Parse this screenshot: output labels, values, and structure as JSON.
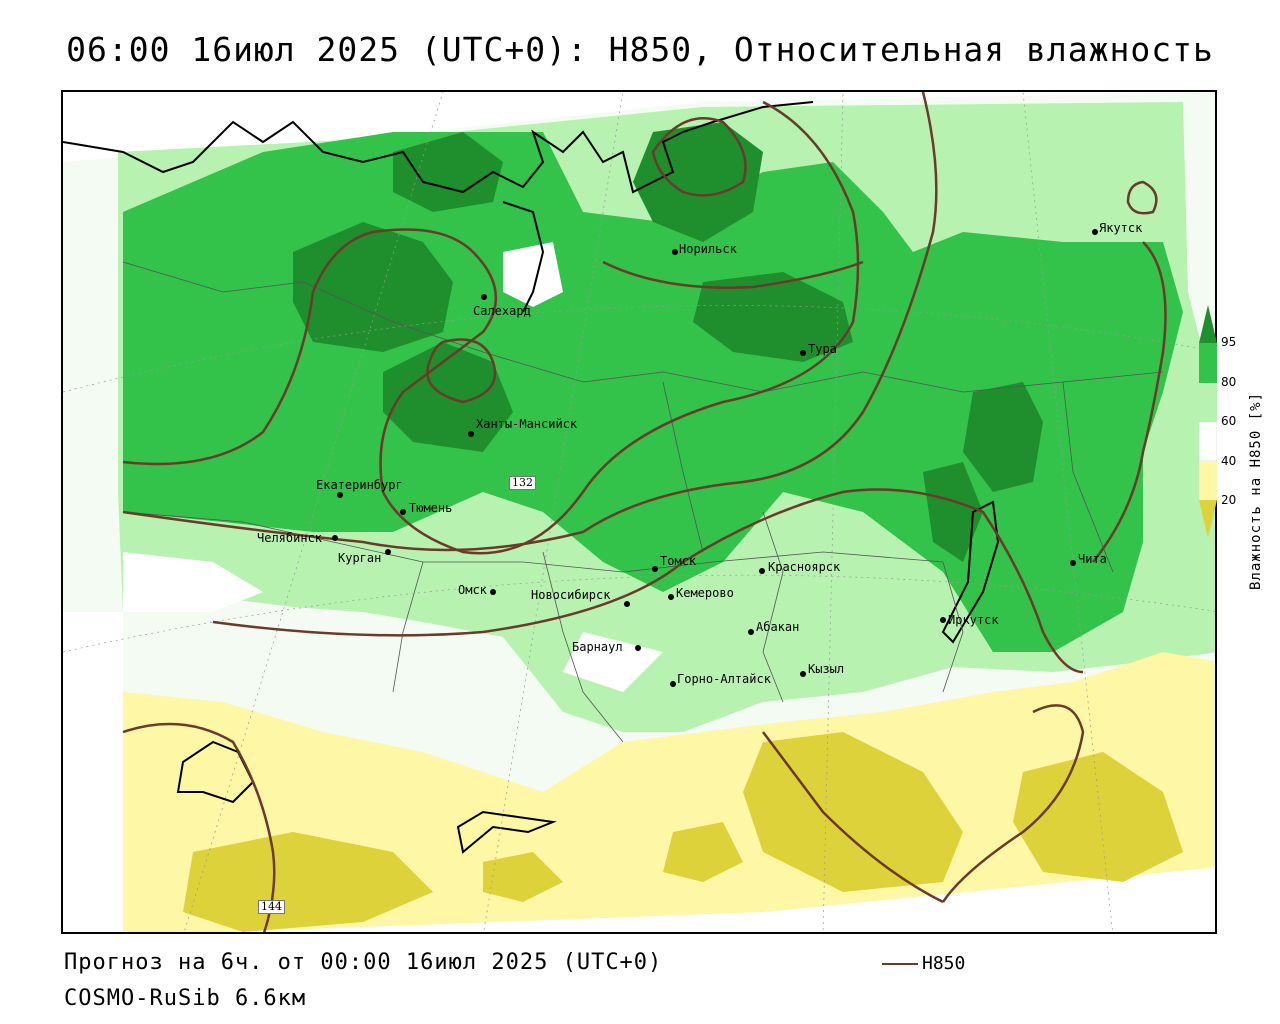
{
  "title": "06:00 16июл 2025 (UTC+0): H850, Относительная влажность",
  "footer": {
    "forecast": "Прогноз на 6ч. от 00:00 16июл 2025 (UTC+0)",
    "model": "COSMO-RuSib 6.6км"
  },
  "legend": {
    "line_label": "H850",
    "line_color": "#6b3a2a"
  },
  "colorbar": {
    "title": "Влажность на H850 [%]",
    "ticks": [
      "95",
      "80",
      "60",
      "40",
      "20"
    ],
    "colors": [
      "#1f8f2e",
      "#33c24a",
      "#b7f2b0",
      "#ffffff",
      "#fdf7a6",
      "#ddd23a"
    ]
  },
  "cities": [
    {
      "name": "Якутск"
    },
    {
      "name": "Норильск"
    },
    {
      "name": "Салехард"
    },
    {
      "name": "Тура"
    },
    {
      "name": "Ханты-Мансийск"
    },
    {
      "name": "Екатеринбург"
    },
    {
      "name": "Тюмень"
    },
    {
      "name": "Челябинск"
    },
    {
      "name": "Курган"
    },
    {
      "name": "Омск"
    },
    {
      "name": "Новосибирск"
    },
    {
      "name": "Томск"
    },
    {
      "name": "Кемерово"
    },
    {
      "name": "Красноярск"
    },
    {
      "name": "Барнаул"
    },
    {
      "name": "Абакан"
    },
    {
      "name": "Горно-Алтайск"
    },
    {
      "name": "Кызыл"
    },
    {
      "name": "Иркутск"
    },
    {
      "name": "Чита"
    }
  ],
  "contour_labels": {
    "a": "132",
    "b": "144"
  }
}
